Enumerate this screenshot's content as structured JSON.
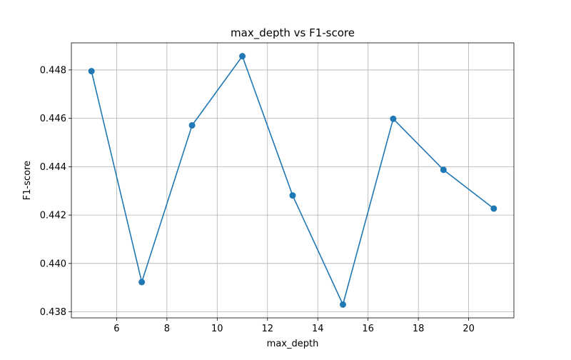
{
  "chart_data": {
    "type": "line",
    "title": "max_depth vs F1-score",
    "xlabel": "max_depth",
    "ylabel": "F1-score",
    "x": [
      5,
      7,
      9,
      11,
      13,
      15,
      17,
      19,
      21
    ],
    "series": [
      {
        "values": [
          0.44795,
          0.43923,
          0.44571,
          0.44857,
          0.44281,
          0.4383,
          0.44598,
          0.44387,
          0.44227
        ],
        "color": "#1f77b4",
        "marker": "circle"
      }
    ],
    "xlim": [
      4.2,
      21.8
    ],
    "ylim": [
      0.43775,
      0.44912
    ],
    "xticks": [
      6,
      8,
      10,
      12,
      14,
      16,
      18,
      20
    ],
    "xtick_labels": [
      "6",
      "8",
      "10",
      "12",
      "14",
      "16",
      "18",
      "20"
    ],
    "yticks": [
      0.438,
      0.44,
      0.442,
      0.444,
      0.446,
      0.448
    ],
    "ytick_labels": [
      "0.438",
      "0.440",
      "0.442",
      "0.444",
      "0.446",
      "0.448"
    ],
    "grid": true,
    "legend": "none"
  }
}
